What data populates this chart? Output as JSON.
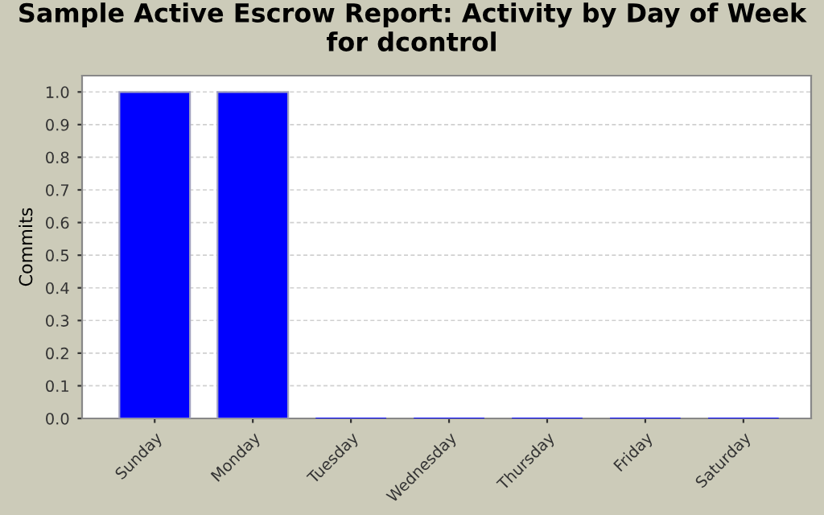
{
  "chart_data": {
    "type": "bar",
    "title": "Sample Active Escrow Report: Activity by Day of Week for dcontrol",
    "ylabel": "Commits",
    "categories": [
      "Sunday",
      "Monday",
      "Tuesday",
      "Wednesday",
      "Thursday",
      "Friday",
      "Saturday"
    ],
    "series": [
      {
        "color": "#0000ff",
        "values": [
          1,
          1,
          0,
          0,
          0,
          0,
          0
        ]
      }
    ],
    "ylim": [
      0,
      1.05
    ],
    "yticks": [
      {
        "value": 0,
        "label": "0.0"
      },
      {
        "value": 0.1,
        "label": "0.1"
      },
      {
        "value": 0.2,
        "label": "0.2"
      },
      {
        "value": 0.3,
        "label": "0.3"
      },
      {
        "value": 0.4,
        "label": "0.4"
      },
      {
        "value": 0.5,
        "label": "0.5"
      },
      {
        "value": 0.6,
        "label": "0.6"
      },
      {
        "value": 0.7,
        "label": "0.7"
      },
      {
        "value": 0.8,
        "label": "0.8"
      },
      {
        "value": 0.9,
        "label": "0.9"
      },
      {
        "value": 1,
        "label": "1.0"
      }
    ],
    "grid": "y"
  }
}
